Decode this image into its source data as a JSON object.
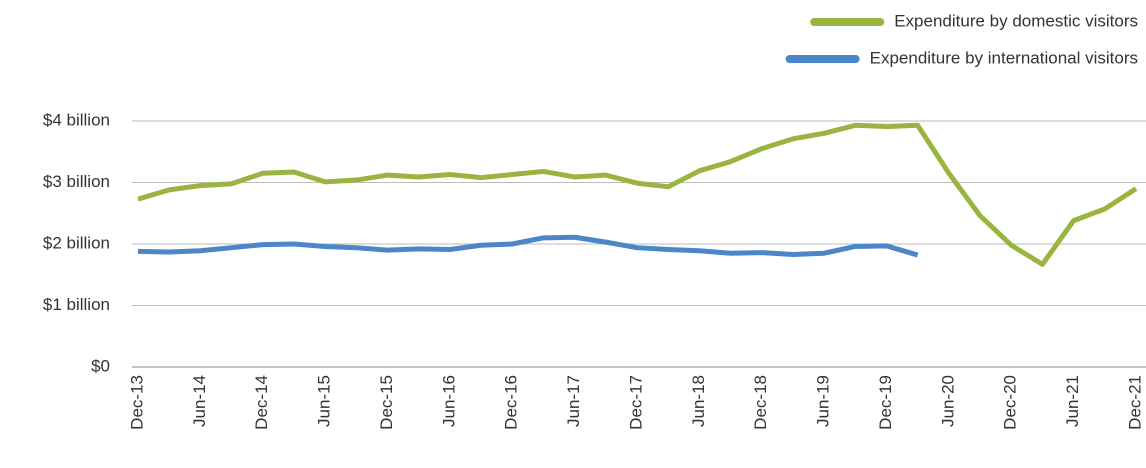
{
  "chart_data": {
    "type": "line",
    "categories": [
      "Dec-13",
      null,
      "Jun-14",
      null,
      "Dec-14",
      null,
      "Jun-15",
      null,
      "Dec-15",
      null,
      "Jun-16",
      null,
      "Dec-16",
      null,
      "Jun-17",
      null,
      "Dec-17",
      null,
      "Jun-18",
      null,
      "Dec-18",
      null,
      "Jun-19",
      null,
      "Dec-19",
      null,
      "Jun-20",
      null,
      "Dec-20",
      null,
      "Jun-21",
      null,
      "Dec-21"
    ],
    "series": [
      {
        "name": "Expenditure by domestic visitors",
        "color": "#9ab441",
        "values": [
          2.73,
          2.88,
          2.95,
          2.98,
          3.15,
          3.17,
          3.01,
          3.04,
          3.12,
          3.09,
          3.13,
          3.08,
          3.13,
          3.18,
          3.09,
          3.12,
          2.99,
          2.93,
          3.19,
          3.34,
          3.55,
          3.71,
          3.8,
          3.93,
          3.91,
          3.93,
          3.15,
          2.46,
          1.98,
          1.67,
          2.38,
          2.57,
          2.9
        ]
      },
      {
        "name": "Expenditure by international visitors",
        "color": "#4a86c8",
        "values": [
          1.88,
          1.87,
          1.89,
          1.94,
          1.99,
          2.0,
          1.96,
          1.94,
          1.9,
          1.92,
          1.91,
          1.98,
          2.0,
          2.1,
          2.11,
          2.03,
          1.94,
          1.91,
          1.89,
          1.85,
          1.86,
          1.83,
          1.85,
          1.96,
          1.97,
          1.82,
          null,
          null,
          null,
          null,
          null,
          null,
          null
        ]
      }
    ],
    "ylim": [
      0,
      4
    ],
    "yticks": [
      {
        "value": 0,
        "label": "$0"
      },
      {
        "value": 1,
        "label": "$1 billion"
      },
      {
        "value": 2,
        "label": "$2 billion"
      },
      {
        "value": 3,
        "label": "$3 billion"
      },
      {
        "value": 4,
        "label": "$4 billion"
      }
    ],
    "grid": true,
    "legend": "top-right"
  }
}
